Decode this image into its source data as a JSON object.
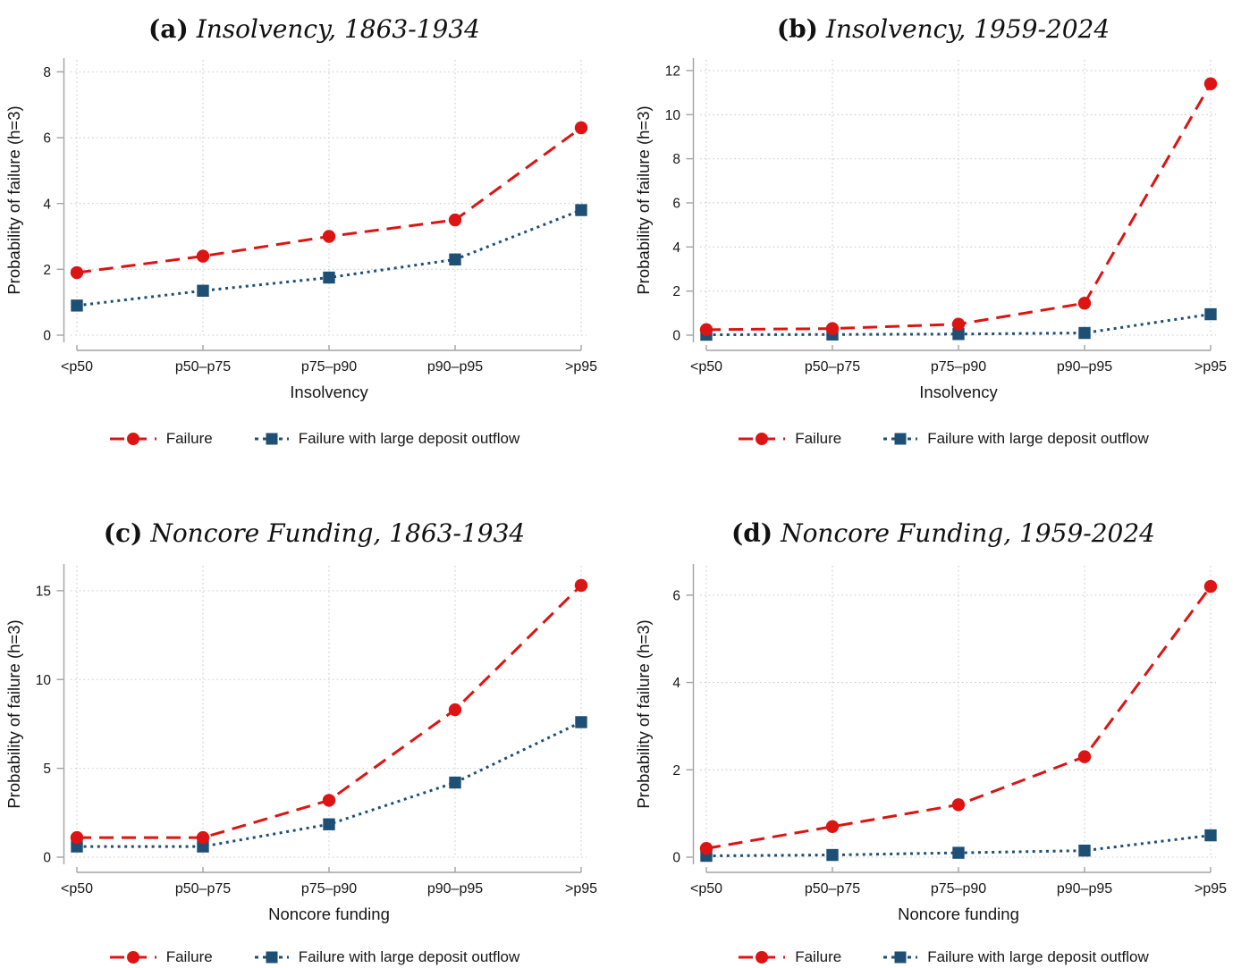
{
  "colors": {
    "failure": "#dc1413",
    "outflow": "#1e4f75",
    "grid": "#cccccc",
    "axis": "#a3a3a3",
    "text": "#161616"
  },
  "chart_data": [
    {
      "type": "line",
      "panel_label": "(a)",
      "title": "Insolvency, 1863-1934",
      "xlabel": "Insolvency",
      "ylabel": "Probability of failure (h=3)",
      "categories": [
        "<p50",
        "p50–p75",
        "p75–p90",
        "p90–p95",
        ">p95"
      ],
      "yticks": [
        0,
        2,
        4,
        6,
        8
      ],
      "ylim": [
        0,
        8
      ],
      "grid": true,
      "legend_position": "bottom",
      "series": [
        {
          "name": "Failure",
          "color": "#dc1413",
          "marker": "circle",
          "line": "long-dash",
          "values": [
            1.9,
            2.4,
            3.0,
            3.5,
            6.3
          ]
        },
        {
          "name": "Failure with large deposit outflow",
          "color": "#1e4f75",
          "marker": "square",
          "line": "dotted",
          "values": [
            0.9,
            1.35,
            1.75,
            2.3,
            3.8
          ]
        }
      ]
    },
    {
      "type": "line",
      "panel_label": "(b)",
      "title": "Insolvency, 1959-2024",
      "xlabel": "Insolvency",
      "ylabel": "Probability of failure (h=3)",
      "categories": [
        "<p50",
        "p50–p75",
        "p75–p90",
        "p90–p95",
        ">p95"
      ],
      "yticks": [
        0,
        2,
        4,
        6,
        8,
        10,
        12
      ],
      "ylim": [
        0,
        12
      ],
      "grid": true,
      "legend_position": "bottom",
      "series": [
        {
          "name": "Failure",
          "color": "#dc1413",
          "marker": "circle",
          "line": "long-dash",
          "values": [
            0.25,
            0.3,
            0.5,
            1.45,
            11.4
          ]
        },
        {
          "name": "Failure with large deposit outflow",
          "color": "#1e4f75",
          "marker": "square",
          "line": "dotted",
          "values": [
            0.02,
            0.03,
            0.05,
            0.1,
            0.95
          ]
        }
      ]
    },
    {
      "type": "line",
      "panel_label": "(c)",
      "title": "Noncore Funding, 1863-1934",
      "xlabel": "Noncore funding",
      "ylabel": "Probability of failure (h=3)",
      "categories": [
        "<p50",
        "p50–p75",
        "p75–p90",
        "p90–p95",
        ">p95"
      ],
      "yticks": [
        0,
        5,
        10,
        15
      ],
      "ylim": [
        0,
        15
      ],
      "grid": true,
      "legend_position": "bottom",
      "series": [
        {
          "name": "Failure",
          "color": "#dc1413",
          "marker": "circle",
          "line": "long-dash",
          "values": [
            1.1,
            1.1,
            3.2,
            8.3,
            15.3
          ]
        },
        {
          "name": "Failure with large deposit outflow",
          "color": "#1e4f75",
          "marker": "square",
          "line": "dotted",
          "values": [
            0.6,
            0.6,
            1.85,
            4.2,
            7.6
          ]
        }
      ]
    },
    {
      "type": "line",
      "panel_label": "(d)",
      "title": "Noncore Funding, 1959-2024",
      "xlabel": "Noncore funding",
      "ylabel": "Probability of failure (h=3)",
      "categories": [
        "<p50",
        "p50–p75",
        "p75–p90",
        "p90–p95",
        ">p95"
      ],
      "yticks": [
        0,
        2,
        4,
        6
      ],
      "ylim": [
        0,
        6
      ],
      "grid": true,
      "legend_position": "bottom",
      "series": [
        {
          "name": "Failure",
          "color": "#dc1413",
          "marker": "circle",
          "line": "long-dash",
          "values": [
            0.2,
            0.7,
            1.2,
            2.3,
            6.2
          ]
        },
        {
          "name": "Failure with large deposit outflow",
          "color": "#1e4f75",
          "marker": "square",
          "line": "dotted",
          "values": [
            0.03,
            0.05,
            0.1,
            0.15,
            0.5
          ]
        }
      ]
    }
  ]
}
